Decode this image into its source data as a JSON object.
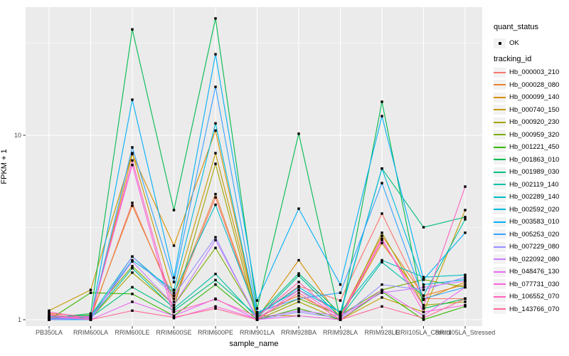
{
  "figure": {
    "background": "#FFFFFF",
    "panel_bg": "#EBEBEB",
    "grid_color": "#FFFFFF",
    "axis_text_color": "#4D4D4D",
    "point_color": "#000000"
  },
  "legend": {
    "quant_status_title": "quant_status",
    "ok_label": "OK",
    "tracking_id_title": "tracking_id"
  },
  "chart_data": {
    "type": "line",
    "title": "",
    "xlabel": "sample_name",
    "ylabel": "FPKM + 1",
    "y_scale": "log10",
    "ylim": [
      0.95,
      50
    ],
    "y_ticks": [
      1,
      10
    ],
    "y_tick_labels": [
      "1",
      "10"
    ],
    "y_minor_ticks": [
      3.1623,
      31.623
    ],
    "grid": true,
    "legend_position": "right",
    "point_shape": "filled-square",
    "point_color": "#000000",
    "quant_status": "OK",
    "x_categories": [
      "PB350LA",
      "RRIM600LA",
      "RRIM600LE",
      "RRIM600SE",
      "RRIM600PE",
      "RRIM901LA",
      "RRIM928BA",
      "RRIM928LA",
      "RRIM928LE",
      "RRII105LA_Control",
      "RRII105LA_Stressed"
    ],
    "series": [
      {
        "name": "Hb_000003_210",
        "color": "#F8766D",
        "values": [
          1.06,
          1.02,
          4.3,
          1.25,
          4.6,
          1.05,
          1.52,
          1.27,
          3.76,
          1.3,
          1.3
        ]
      },
      {
        "name": "Hb_000028_080",
        "color": "#EA8331",
        "values": [
          1.08,
          1.04,
          4.15,
          1.3,
          4.8,
          1.08,
          1.35,
          1.05,
          2.85,
          1.35,
          1.55
        ]
      },
      {
        "name": "Hb_000099_140",
        "color": "#D89000",
        "values": [
          1.02,
          1.0,
          7.9,
          2.52,
          10.6,
          1.02,
          2.1,
          1.02,
          2.6,
          1.28,
          1.6
        ]
      },
      {
        "name": "Hb_000740_150",
        "color": "#C49A00",
        "values": [
          1.12,
          1.45,
          8.0,
          1.35,
          8.0,
          1.05,
          1.05,
          1.0,
          1.32,
          1.1,
          3.93
        ]
      },
      {
        "name": "Hb_000920_230",
        "color": "#A3A500",
        "values": [
          1.0,
          1.02,
          1.8,
          1.16,
          7.0,
          1.0,
          1.25,
          1.0,
          2.96,
          1.2,
          1.25
        ]
      },
      {
        "name": "Hb_000959_320",
        "color": "#7CAE00",
        "values": [
          1.03,
          1.06,
          1.95,
          1.2,
          2.45,
          1.03,
          1.3,
          1.06,
          1.45,
          1.65,
          1.5
        ]
      },
      {
        "name": "Hb_001221_450",
        "color": "#39B600",
        "values": [
          1.0,
          1.4,
          1.38,
          1.05,
          1.55,
          1.0,
          1.15,
          1.0,
          1.42,
          1.0,
          1.18
        ]
      },
      {
        "name": "Hb_001863_010",
        "color": "#00BB4E",
        "values": [
          1.02,
          1.08,
          37.5,
          3.93,
          43.0,
          1.15,
          10.2,
          1.0,
          15.2,
          1.15,
          1.3
        ]
      },
      {
        "name": "Hb_001989_030",
        "color": "#00BF7D",
        "values": [
          1.01,
          1.03,
          1.5,
          1.12,
          1.64,
          1.05,
          1.78,
          1.08,
          6.6,
          3.17,
          3.6
        ]
      },
      {
        "name": "Hb_002119_140",
        "color": "#00C1A3",
        "values": [
          1.0,
          1.02,
          1.9,
          1.15,
          1.77,
          1.02,
          1.73,
          1.03,
          2.05,
          1.35,
          3.5
        ]
      },
      {
        "name": "Hb_002289_140",
        "color": "#00BFC4",
        "values": [
          1.04,
          1.05,
          2.2,
          1.4,
          4.2,
          1.08,
          1.45,
          1.1,
          2.1,
          1.7,
          1.75
        ]
      },
      {
        "name": "Hb_002592_020",
        "color": "#00BAE0",
        "values": [
          1.01,
          1.03,
          2.1,
          1.45,
          11.6,
          1.05,
          1.5,
          1.1,
          6.6,
          1.55,
          1.65
        ]
      },
      {
        "name": "Hb_003583_010",
        "color": "#00B0F6",
        "values": [
          1.0,
          1.0,
          15.6,
          1.69,
          27.5,
          1.27,
          4.0,
          1.55,
          12.7,
          1.65,
          2.96
        ]
      },
      {
        "name": "Hb_005253_020",
        "color": "#35A2FF",
        "values": [
          1.02,
          1.01,
          8.6,
          1.6,
          18.3,
          1.1,
          1.3,
          1.4,
          5.5,
          1.3,
          1.5
        ]
      },
      {
        "name": "Hb_007229_080",
        "color": "#9590FF",
        "values": [
          1.03,
          1.0,
          2.2,
          1.35,
          2.8,
          1.0,
          1.1,
          1.02,
          1.55,
          1.45,
          1.7
        ]
      },
      {
        "name": "Hb_022092_080",
        "color": "#C77CFF",
        "values": [
          1.0,
          1.02,
          2.07,
          1.2,
          2.7,
          1.02,
          1.12,
          1.05,
          1.4,
          1.5,
          1.62
        ]
      },
      {
        "name": "Hb_048476_130",
        "color": "#E76BF3",
        "values": [
          1.05,
          1.0,
          1.25,
          1.05,
          1.3,
          1.0,
          1.05,
          1.0,
          1.45,
          1.05,
          1.5
        ]
      },
      {
        "name": "Hb_077731_030",
        "color": "#FA62DB",
        "values": [
          1.02,
          1.04,
          6.9,
          1.02,
          1.18,
          1.01,
          1.45,
          1.03,
          2.75,
          1.1,
          1.2
        ]
      },
      {
        "name": "Hb_106552_070",
        "color": "#FF62BC",
        "values": [
          1.1,
          1.02,
          7.3,
          1.1,
          1.29,
          1.04,
          1.6,
          1.02,
          2.7,
          1.18,
          5.27
        ]
      },
      {
        "name": "Hb_143766_070",
        "color": "#FF6A98",
        "values": [
          1.07,
          1.0,
          1.12,
          1.03,
          1.15,
          1.0,
          1.4,
          1.0,
          1.18,
          1.02,
          1.3
        ]
      }
    ]
  }
}
